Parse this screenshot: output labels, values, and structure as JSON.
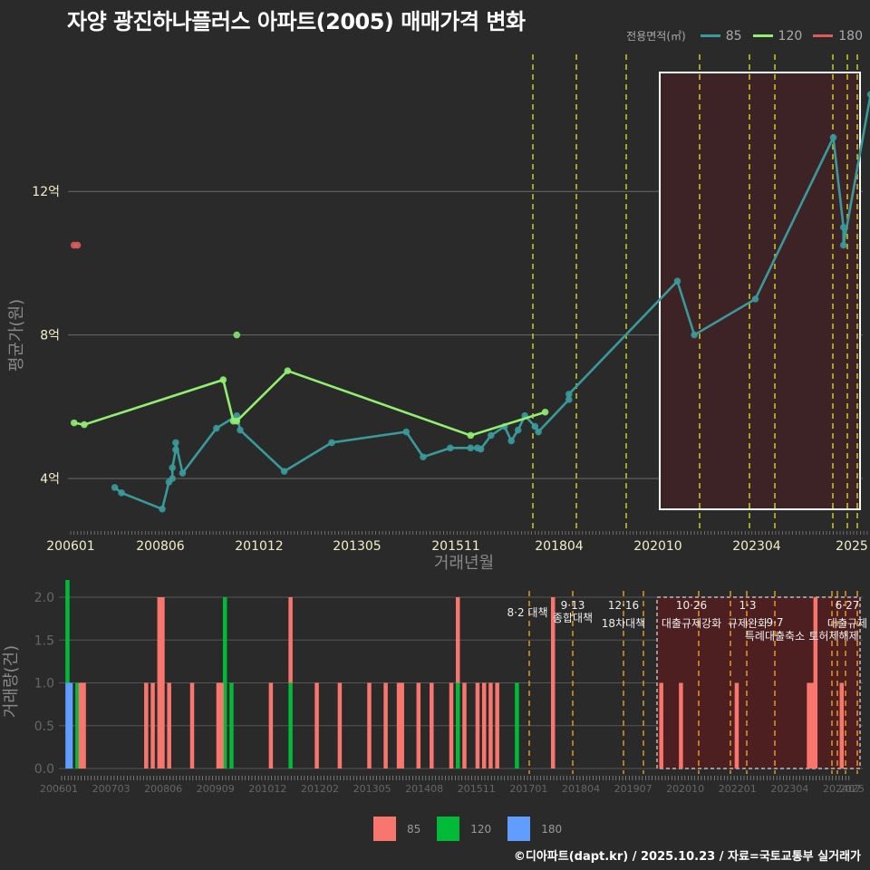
{
  "title": "자양 광진하나플러스 아파트(2005) 매매가격 변화",
  "legend_top": {
    "label": "전용면적(㎡)",
    "items": [
      {
        "name": "85",
        "color": "#3a9a9a"
      },
      {
        "name": "120",
        "color": "#90ee70"
      },
      {
        "name": "180",
        "color": "#e05a5a"
      }
    ]
  },
  "legend_bottom": {
    "items": [
      {
        "name": "85",
        "color": "#f8766d"
      },
      {
        "name": "120",
        "color": "#00ba38"
      },
      {
        "name": "180",
        "color": "#619cff"
      }
    ]
  },
  "credit": "©디아파트(dapt.kr) / 2025.10.23 / 자료=국토교통부 실거래가",
  "chart_data": [
    {
      "type": "line",
      "title": "자양 광진하나플러스 아파트(2005) 매매가격 변화",
      "xlabel": "거래년월",
      "ylabel": "평균가(원)",
      "x_ticks": [
        "200601",
        "200806",
        "201012",
        "201305",
        "201511",
        "201804",
        "202010",
        "202304",
        "2025"
      ],
      "y_ticks": [
        "4억",
        "8억",
        "12억"
      ],
      "ylim_eok": [
        2.6,
        15.0
      ],
      "grid": true,
      "legend_position": "top-right",
      "series": [
        {
          "name": "85",
          "color": "#3a9a9a",
          "points": [
            [
              "200702",
              3.75
            ],
            [
              "200704",
              3.6
            ],
            [
              "200804",
              3.15
            ],
            [
              "200806",
              3.9
            ],
            [
              "200807",
              4.0
            ],
            [
              "200807",
              4.3
            ],
            [
              "200808",
              4.8
            ],
            [
              "200808",
              5.0
            ],
            [
              "200810",
              4.15
            ],
            [
              "200908",
              5.4
            ],
            [
              "201002",
              5.75
            ],
            [
              "201003",
              5.35
            ],
            [
              "201104",
              4.2
            ],
            [
              "201206",
              5.0
            ],
            [
              "201404",
              5.3
            ],
            [
              "201409",
              4.6
            ],
            [
              "201505",
              4.85
            ],
            [
              "201511",
              4.85
            ],
            [
              "201601",
              4.85
            ],
            [
              "201602",
              4.82
            ],
            [
              "201605",
              5.2
            ],
            [
              "201609",
              5.45
            ],
            [
              "201611",
              5.05
            ],
            [
              "201701",
              5.35
            ],
            [
              "201703",
              5.75
            ],
            [
              "201706",
              5.45
            ],
            [
              "201707",
              5.3
            ],
            [
              "201804",
              6.2
            ],
            [
              "201804",
              6.35
            ],
            [
              "202012",
              9.5
            ],
            [
              "202105",
              8.0
            ],
            [
              "202211",
              9.0
            ],
            [
              "202410",
              13.5
            ],
            [
              "202501",
              11.0
            ],
            [
              "202501",
              10.5
            ],
            [
              "202509",
              14.7
            ]
          ]
        },
        {
          "name": "120",
          "color": "#90ee70",
          "points": [
            [
              "200602",
              5.55
            ],
            [
              "200605",
              5.5
            ],
            [
              "200910",
              6.75
            ],
            [
              "201001",
              5.6
            ],
            [
              "201002",
              5.6
            ],
            [
              "201105",
              7.0
            ],
            [
              "201511",
              5.2
            ],
            [
              "201709",
              5.85
            ]
          ],
          "isolated": [
            [
              "201002",
              8.0
            ]
          ]
        },
        {
          "name": "180",
          "color": "#e05a5a",
          "points": [
            [
              "200602",
              10.5
            ],
            [
              "200603",
              10.5
            ]
          ]
        }
      ],
      "highlight_region": {
        "from": "202011",
        "to": "202509",
        "color": "#4a2a2a"
      },
      "policy_lines": [
        "201708",
        "201809",
        "201912",
        "202110",
        "202301",
        "202309",
        "202406",
        "202501",
        "202506"
      ]
    },
    {
      "type": "bar",
      "xlabel": "",
      "ylabel": "거래량(건)",
      "x_ticks": [
        "200601",
        "200703",
        "200806",
        "200909",
        "201012",
        "201202",
        "201305",
        "201408",
        "201511",
        "201701",
        "201804",
        "201907",
        "202010",
        "202201",
        "202304",
        "202407",
        "2025"
      ],
      "y_ticks": [
        "0.0",
        "0.5",
        "1.0",
        "1.5",
        "2.0"
      ],
      "ylim": [
        0,
        2
      ],
      "series": [
        {
          "name": "85",
          "color": "#f8766d",
          "bars": [
            [
              "200605",
              1
            ],
            [
              "200606",
              1
            ],
            [
              "200801",
              1
            ],
            [
              "200803",
              1
            ],
            [
              "200805",
              2
            ],
            [
              "200806",
              2
            ],
            [
              "200808",
              1
            ],
            [
              "200903",
              1
            ],
            [
              "200911",
              1
            ],
            [
              "200912",
              1
            ],
            [
              "201103",
              1
            ],
            [
              "201109",
              1
            ],
            [
              "201205",
              1
            ],
            [
              "201212",
              1
            ],
            [
              "201309",
              1
            ],
            [
              "201402",
              1
            ],
            [
              "201406",
              1
            ],
            [
              "201407",
              1
            ],
            [
              "201412",
              1
            ],
            [
              "201504",
              1
            ],
            [
              "201510",
              1
            ],
            [
              "201512",
              1
            ],
            [
              "201602",
              1
            ],
            [
              "201606",
              1
            ],
            [
              "201608",
              1
            ],
            [
              "201610",
              1
            ],
            [
              "201612",
              1
            ],
            [
              "201805",
              2
            ],
            [
              "202102",
              1
            ],
            [
              "202108",
              1
            ],
            [
              "202301",
              1
            ],
            [
              "202411",
              1
            ],
            [
              "202412",
              1
            ],
            [
              "202501",
              2
            ],
            [
              "202509",
              1
            ]
          ]
        },
        {
          "name": "120",
          "color": "#00ba38",
          "bars": [
            [
              "200601",
              2
            ],
            [
              "200604",
              1
            ],
            [
              "201001",
              2
            ],
            [
              "201003",
              1
            ],
            [
              "201109",
              1
            ],
            [
              "201512",
              1
            ],
            [
              "201706",
              1
            ]
          ]
        },
        {
          "name": "180",
          "color": "#619cff",
          "bars": [
            [
              "200601",
              1
            ],
            [
              "200602",
              1
            ]
          ]
        }
      ],
      "annotations": [
        {
          "date": "201708",
          "line1": "8·2 대책",
          "line2": ""
        },
        {
          "date": "201809",
          "line1": "9·13",
          "line2": "종합대책"
        },
        {
          "date": "201912",
          "line1": "12·16",
          "line2": "18차대책"
        },
        {
          "date": "202110",
          "line1": "10·26",
          "line2": "대출규제강화"
        },
        {
          "date": "202301",
          "line1": "1·3",
          "line2": "규제완화"
        },
        {
          "date": "202309",
          "line1": "9·7",
          "line2": "특례대출축소"
        },
        {
          "date": "202406",
          "line1": "",
          "line2": "토허제해제"
        },
        {
          "date": "202506",
          "line1": "6·27",
          "line2": "대출규제"
        }
      ]
    }
  ],
  "top_axis": {
    "ylabel": "평균가(원)",
    "xlabel": "거래년월"
  },
  "bottom_axis": {
    "ylabel": "거래량(건)"
  }
}
